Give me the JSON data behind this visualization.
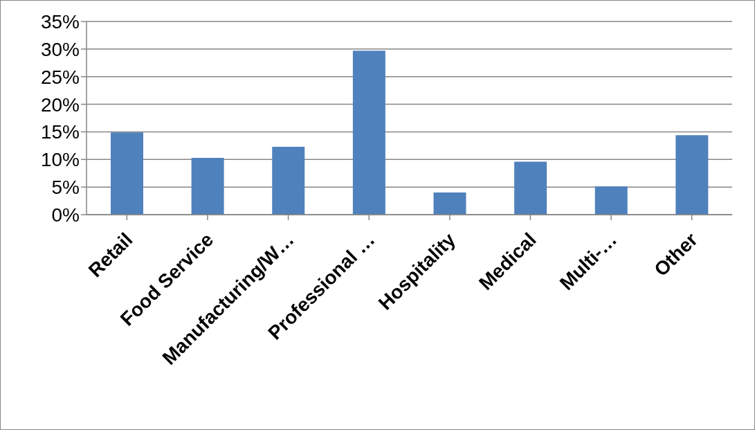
{
  "chart_data": {
    "type": "bar",
    "categories": [
      "Retail",
      "Food Service",
      "Manufacturing/W…",
      "Professional …",
      "Hospitality",
      "Medical",
      "Multi-…",
      "Other"
    ],
    "values": [
      14.9,
      10.3,
      12.3,
      29.7,
      4.0,
      9.6,
      5.1,
      14.4
    ],
    "color": "#4f81bd",
    "ylim": [
      0,
      35
    ],
    "yticks": [
      {
        "value": 0,
        "label": "0%"
      },
      {
        "value": 5,
        "label": "5%"
      },
      {
        "value": 10,
        "label": "10%"
      },
      {
        "value": 15,
        "label": "15%"
      },
      {
        "value": 20,
        "label": "20%"
      },
      {
        "value": 25,
        "label": "25%"
      },
      {
        "value": 30,
        "label": "30%"
      },
      {
        "value": 35,
        "label": "35%"
      }
    ],
    "grid": "y"
  }
}
